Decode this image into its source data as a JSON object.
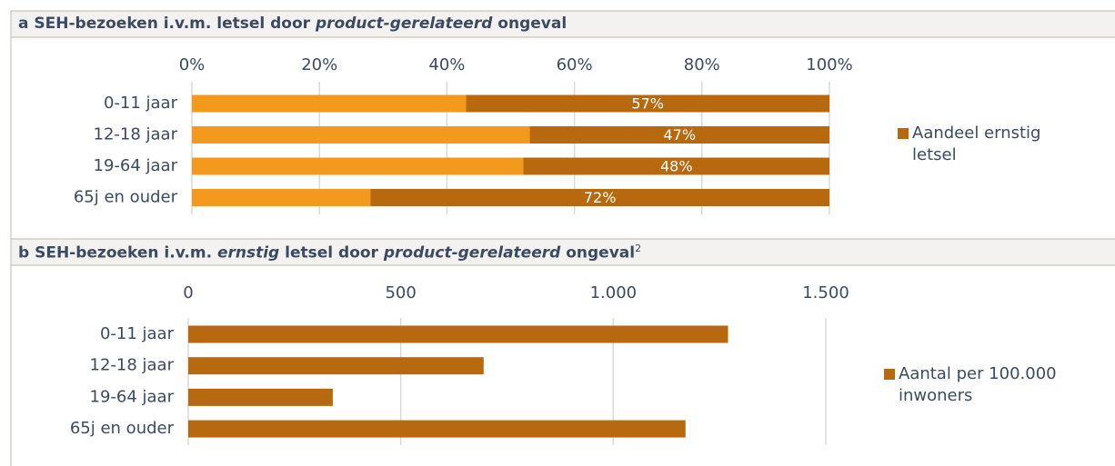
{
  "chart_data": [
    {
      "type": "bar",
      "orientation": "horizontal",
      "stacked": true,
      "title": [
        "a SEH-bezoeken i.v.m. letsel door ",
        "product-gerelateerd",
        " ongeval"
      ],
      "categories": [
        "0-11 jaar",
        "12-18 jaar",
        "19-64 jaar",
        "65j en ouder"
      ],
      "series": [
        {
          "color": "#f39a1e",
          "values": [
            43,
            53,
            52,
            28
          ]
        },
        {
          "name": "Aandeel ernstig letsel",
          "color": "#b8690f",
          "values": [
            57,
            47,
            48,
            72
          ],
          "value_labels": [
            "57%",
            "47%",
            "48%",
            "72%"
          ]
        }
      ],
      "xlim": [
        0,
        100
      ],
      "xticks": [
        {
          "value": 0,
          "label": "0%"
        },
        {
          "value": 20,
          "label": "20%"
        },
        {
          "value": 40,
          "label": "40%"
        },
        {
          "value": 60,
          "label": "60%"
        },
        {
          "value": 80,
          "label": "80%"
        },
        {
          "value": 100,
          "label": "100%"
        }
      ],
      "grid": true,
      "legend": "right"
    },
    {
      "type": "bar",
      "orientation": "horizontal",
      "stacked": false,
      "title": [
        "b SEH-bezoeken i.v.m. ",
        "ernstig",
        " letsel door ",
        "product-gerelateerd",
        " ongeval"
      ],
      "title_superscript": "2",
      "categories": [
        "0-11 jaar",
        "12-18 jaar",
        "19-64 jaar",
        "65j en ouder"
      ],
      "series": [
        {
          "name": "Aantal per 100.000 inwoners",
          "color": "#b8690f",
          "values": [
            1270,
            695,
            340,
            1170
          ]
        }
      ],
      "xlim": [
        0,
        1500
      ],
      "xticks": [
        0,
        500,
        {
          "value": 1000,
          "label": "1.000"
        },
        {
          "value": 1500,
          "label": "1.500"
        }
      ],
      "grid": true,
      "legend": "right"
    }
  ]
}
